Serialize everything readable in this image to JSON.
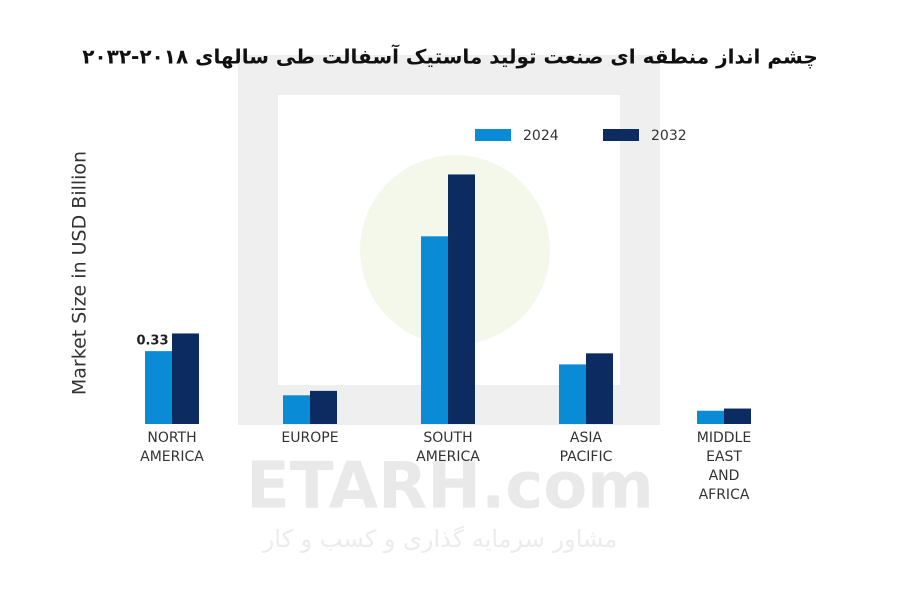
{
  "chart_data": {
    "type": "bar",
    "title": "چشم انداز منطقه ای صنعت تولید ماستیک آسفالت طی سالهای ۲۰۱۸-۲۰۳۲",
    "y_label": "Market Size in USD Billion",
    "watermark": "ETARH.com",
    "watermark_subtitle": "مشاور سرمایه گذاری و کسب و کار",
    "categories": [
      "NORTH\nAMERICA",
      "EUROPE",
      "SOUTH\nAMERICA",
      "ASIA\nPACIFIC",
      "MIDDLE\nEAST\nAND\nAFRICA"
    ],
    "series": [
      {
        "name": "2024",
        "color": "#0a8bd6",
        "values": [
          0.33,
          0.13,
          0.85,
          0.27,
          0.06
        ],
        "value_labels": [
          "0.33",
          null,
          null,
          null,
          null
        ]
      },
      {
        "name": "2032",
        "color": "#0c2b61",
        "values": [
          0.41,
          0.15,
          1.13,
          0.32,
          0.07
        ]
      }
    ],
    "ylim": [
      0,
      1.2
    ],
    "legend": "top-right"
  }
}
